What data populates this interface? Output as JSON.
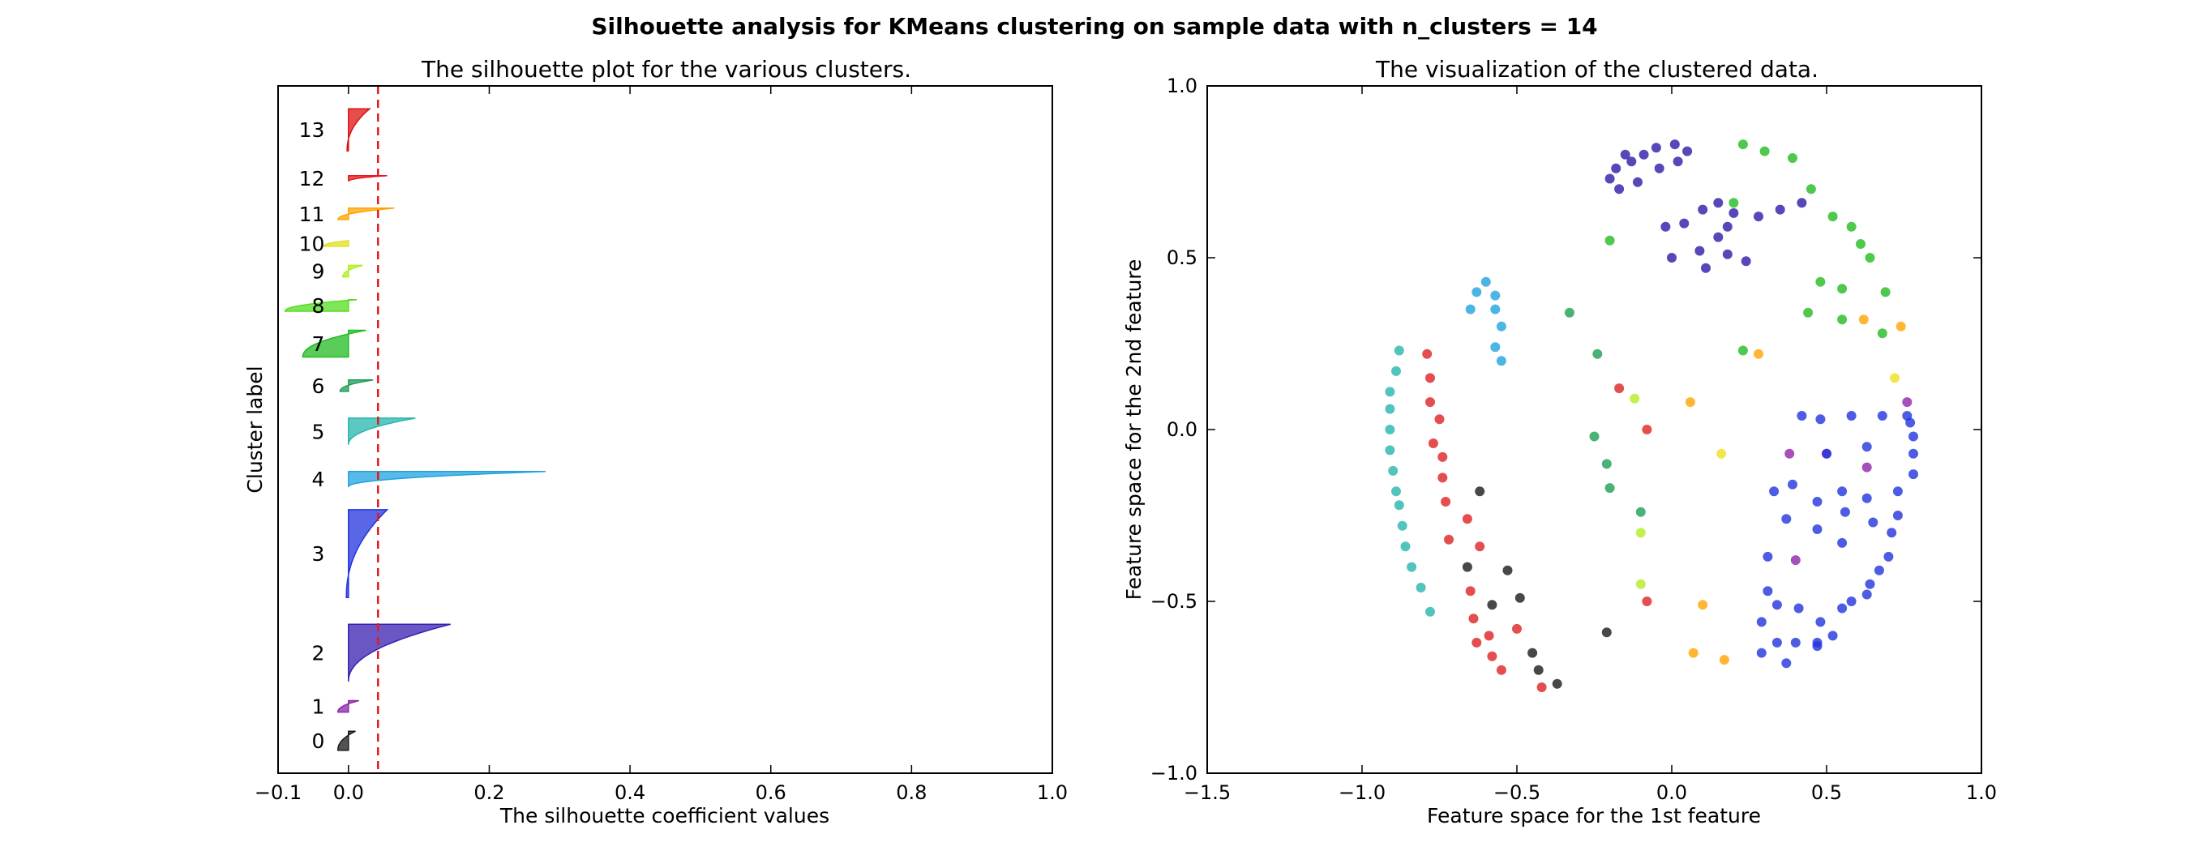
{
  "suptitle": "Silhouette analysis for KMeans clustering on sample data with n_clusters = 14",
  "left": {
    "chart_data": {
      "type": "area",
      "title": "The silhouette plot for the various clusters.",
      "xlabel": "The silhouette coefficient values",
      "ylabel": "Cluster label",
      "xlim": [
        -0.1,
        1.0
      ],
      "ylim": [
        0,
        180
      ],
      "xticks": [
        "−0.1",
        "0.0",
        "0.2",
        "0.4",
        "0.6",
        "0.8",
        "1.0"
      ],
      "xtick_values": [
        -0.1,
        0.0,
        0.2,
        0.4,
        0.6,
        0.8,
        1.0
      ],
      "average_silhouette": 0.042,
      "average_line_color": "#e41a1c",
      "clusters": [
        {
          "label": "0",
          "color": "#1a1a1a",
          "y0": 6,
          "y1": 11,
          "max": 0.01,
          "min": -0.015
        },
        {
          "label": "1",
          "color": "#8e24aa",
          "y0": 16,
          "y1": 19,
          "max": 0.015,
          "min": -0.015
        },
        {
          "label": "2",
          "color": "#3a1fb0",
          "y0": 24,
          "y1": 39,
          "max": 0.145,
          "min": 0.0
        },
        {
          "label": "3",
          "color": "#2233dd",
          "y0": 46,
          "y1": 69,
          "max": 0.055,
          "min": -0.003
        },
        {
          "label": "4",
          "color": "#1fa3e0",
          "y0": 75,
          "y1": 79,
          "max": 0.28,
          "min": 0.0
        },
        {
          "label": "5",
          "color": "#26b5ad",
          "y0": 86,
          "y1": 93,
          "max": 0.095,
          "min": 0.0
        },
        {
          "label": "6",
          "color": "#1f9e55",
          "y0": 100,
          "y1": 103,
          "max": 0.035,
          "min": -0.012
        },
        {
          "label": "7",
          "color": "#22bb22",
          "y0": 109,
          "y1": 116,
          "max": 0.025,
          "min": -0.065
        },
        {
          "label": "8",
          "color": "#55dd22",
          "y0": 121,
          "y1": 124,
          "max": 0.012,
          "min": -0.09
        },
        {
          "label": "9",
          "color": "#b0ee22",
          "y0": 130,
          "y1": 133,
          "max": 0.02,
          "min": -0.008
        },
        {
          "label": "10",
          "color": "#e0e022",
          "y0": 138,
          "y1": 139.5,
          "max": 0.0,
          "min": -0.035
        },
        {
          "label": "11",
          "color": "#ffa500",
          "y0": 145,
          "y1": 148,
          "max": 0.065,
          "min": -0.015
        },
        {
          "label": "12",
          "color": "#e41a1c",
          "y0": 155,
          "y1": 156.5,
          "max": 0.055,
          "min": 0.0
        },
        {
          "label": "13",
          "color": "#dd1111",
          "y0": 163,
          "y1": 174,
          "max": 0.03,
          "min": -0.002
        }
      ]
    }
  },
  "right": {
    "chart_data": {
      "type": "scatter",
      "title": "The visualization of the clustered data.",
      "xlabel": "Feature space for the 1st feature",
      "ylabel": "Feature space for the 2nd feature",
      "xlim": [
        -1.5,
        1.0
      ],
      "ylim": [
        -1.0,
        1.0
      ],
      "xticks": [
        "−1.5",
        "−1.0",
        "−0.5",
        "0.0",
        "0.5",
        "1.0"
      ],
      "xtick_values": [
        -1.5,
        -1.0,
        -0.5,
        0.0,
        0.5,
        1.0
      ],
      "yticks": [
        "−1.0",
        "−0.5",
        "0.0",
        "0.5",
        "1.0"
      ],
      "ytick_values": [
        -1.0,
        -0.5,
        0.0,
        0.5,
        1.0
      ],
      "series": [
        {
          "color": "#2b1aa8",
          "points": [
            [
              -0.2,
              0.73
            ],
            [
              -0.18,
              0.76
            ],
            [
              -0.15,
              0.8
            ],
            [
              -0.13,
              0.78
            ],
            [
              -0.09,
              0.8
            ],
            [
              -0.05,
              0.82
            ],
            [
              0.01,
              0.83
            ],
            [
              0.05,
              0.81
            ],
            [
              -0.17,
              0.7
            ],
            [
              -0.11,
              0.72
            ],
            [
              -0.04,
              0.76
            ],
            [
              0.02,
              0.78
            ],
            [
              0.1,
              0.64
            ],
            [
              0.15,
              0.66
            ],
            [
              0.2,
              0.63
            ],
            [
              0.28,
              0.62
            ],
            [
              0.35,
              0.64
            ],
            [
              0.42,
              0.66
            ],
            [
              -0.02,
              0.59
            ],
            [
              0.04,
              0.6
            ],
            [
              0.09,
              0.52
            ],
            [
              0.15,
              0.56
            ],
            [
              0.18,
              0.59
            ],
            [
              0.0,
              0.5
            ],
            [
              0.11,
              0.47
            ],
            [
              0.18,
              0.51
            ],
            [
              0.24,
              0.49
            ]
          ]
        },
        {
          "color": "#22bb22",
          "points": [
            [
              0.23,
              0.83
            ],
            [
              0.3,
              0.81
            ],
            [
              0.39,
              0.79
            ],
            [
              0.45,
              0.7
            ],
            [
              0.52,
              0.62
            ],
            [
              0.58,
              0.59
            ],
            [
              0.61,
              0.54
            ],
            [
              0.64,
              0.5
            ],
            [
              -0.2,
              0.55
            ],
            [
              0.2,
              0.66
            ],
            [
              0.48,
              0.43
            ],
            [
              0.55,
              0.41
            ],
            [
              0.69,
              0.4
            ],
            [
              0.44,
              0.34
            ],
            [
              0.55,
              0.32
            ],
            [
              0.68,
              0.28
            ],
            [
              0.23,
              0.23
            ]
          ]
        },
        {
          "color": "#1fa3e0",
          "points": [
            [
              -0.6,
              0.43
            ],
            [
              -0.63,
              0.4
            ],
            [
              -0.57,
              0.39
            ],
            [
              -0.65,
              0.35
            ],
            [
              -0.57,
              0.35
            ],
            [
              -0.55,
              0.3
            ],
            [
              -0.57,
              0.24
            ],
            [
              -0.55,
              0.2
            ]
          ]
        },
        {
          "color": "#26b5ad",
          "points": [
            [
              -0.88,
              0.23
            ],
            [
              -0.89,
              0.17
            ],
            [
              -0.91,
              0.11
            ],
            [
              -0.91,
              0.06
            ],
            [
              -0.91,
              0.0
            ],
            [
              -0.91,
              -0.06
            ],
            [
              -0.9,
              -0.12
            ],
            [
              -0.89,
              -0.18
            ],
            [
              -0.88,
              -0.22
            ],
            [
              -0.87,
              -0.28
            ],
            [
              -0.86,
              -0.34
            ],
            [
              -0.84,
              -0.4
            ],
            [
              -0.81,
              -0.46
            ],
            [
              -0.78,
              -0.53
            ]
          ]
        },
        {
          "color": "#dd2222",
          "points": [
            [
              -0.79,
              0.22
            ],
            [
              -0.78,
              0.15
            ],
            [
              -0.78,
              0.08
            ],
            [
              -0.75,
              0.03
            ],
            [
              -0.77,
              -0.04
            ],
            [
              -0.74,
              -0.08
            ],
            [
              -0.74,
              -0.14
            ],
            [
              -0.73,
              -0.21
            ],
            [
              -0.72,
              -0.32
            ],
            [
              -0.66,
              -0.26
            ],
            [
              -0.65,
              -0.47
            ],
            [
              -0.64,
              -0.55
            ],
            [
              -0.63,
              -0.62
            ],
            [
              -0.59,
              -0.6
            ],
            [
              -0.58,
              -0.66
            ],
            [
              -0.55,
              -0.7
            ],
            [
              -0.5,
              -0.58
            ],
            [
              -0.42,
              -0.75
            ],
            [
              -0.62,
              -0.34
            ],
            [
              -0.17,
              0.12
            ],
            [
              -0.08,
              0.0
            ],
            [
              -0.08,
              -0.5
            ]
          ]
        },
        {
          "color": "#1a1a1a",
          "points": [
            [
              -0.62,
              -0.18
            ],
            [
              -0.66,
              -0.4
            ],
            [
              -0.58,
              -0.51
            ],
            [
              -0.53,
              -0.41
            ],
            [
              -0.49,
              -0.49
            ],
            [
              -0.45,
              -0.65
            ],
            [
              -0.43,
              -0.7
            ],
            [
              -0.37,
              -0.74
            ],
            [
              -0.21,
              -0.59
            ]
          ]
        },
        {
          "color": "#1f9e55",
          "points": [
            [
              -0.33,
              0.34
            ],
            [
              -0.24,
              0.22
            ],
            [
              -0.25,
              -0.02
            ],
            [
              -0.21,
              -0.1
            ],
            [
              -0.2,
              -0.17
            ],
            [
              -0.1,
              -0.24
            ]
          ]
        },
        {
          "color": "#b0ee22",
          "points": [
            [
              -0.12,
              0.09
            ],
            [
              -0.1,
              -0.3
            ],
            [
              -0.1,
              -0.45
            ]
          ]
        },
        {
          "color": "#f0e020",
          "points": [
            [
              0.16,
              -0.07
            ],
            [
              0.72,
              0.15
            ]
          ]
        },
        {
          "color": "#ffa500",
          "points": [
            [
              0.06,
              0.08
            ],
            [
              0.28,
              0.22
            ],
            [
              0.62,
              0.32
            ],
            [
              0.74,
              0.3
            ],
            [
              0.1,
              -0.51
            ],
            [
              0.07,
              -0.65
            ],
            [
              0.17,
              -0.67
            ]
          ]
        },
        {
          "color": "#8e24aa",
          "points": [
            [
              0.38,
              -0.07
            ],
            [
              0.5,
              -0.07
            ],
            [
              0.63,
              -0.11
            ],
            [
              0.76,
              0.08
            ],
            [
              0.4,
              -0.38
            ]
          ]
        },
        {
          "color": "#2233dd",
          "points": [
            [
              0.42,
              0.04
            ],
            [
              0.48,
              0.03
            ],
            [
              0.58,
              0.04
            ],
            [
              0.68,
              0.04
            ],
            [
              0.76,
              0.04
            ],
            [
              0.77,
              0.02
            ],
            [
              0.78,
              -0.02
            ],
            [
              0.78,
              -0.07
            ],
            [
              0.33,
              -0.18
            ],
            [
              0.39,
              -0.16
            ],
            [
              0.47,
              -0.21
            ],
            [
              0.55,
              -0.18
            ],
            [
              0.63,
              -0.2
            ],
            [
              0.73,
              -0.18
            ],
            [
              0.78,
              -0.13
            ],
            [
              0.31,
              -0.37
            ],
            [
              0.37,
              -0.26
            ],
            [
              0.47,
              -0.29
            ],
            [
              0.55,
              -0.33
            ],
            [
              0.65,
              -0.27
            ],
            [
              0.73,
              -0.25
            ],
            [
              0.31,
              -0.47
            ],
            [
              0.34,
              -0.51
            ],
            [
              0.41,
              -0.52
            ],
            [
              0.48,
              -0.56
            ],
            [
              0.55,
              -0.52
            ],
            [
              0.63,
              -0.48
            ],
            [
              0.67,
              -0.41
            ],
            [
              0.7,
              -0.37
            ],
            [
              0.71,
              -0.3
            ],
            [
              0.34,
              -0.62
            ],
            [
              0.4,
              -0.62
            ],
            [
              0.47,
              -0.62
            ],
            [
              0.52,
              -0.6
            ],
            [
              0.58,
              -0.5
            ],
            [
              0.64,
              -0.45
            ],
            [
              0.37,
              -0.68
            ],
            [
              0.47,
              -0.63
            ],
            [
              0.29,
              -0.65
            ],
            [
              0.29,
              -0.56
            ],
            [
              0.63,
              -0.05
            ],
            [
              0.5,
              -0.07
            ],
            [
              0.56,
              -0.24
            ]
          ]
        }
      ]
    }
  }
}
